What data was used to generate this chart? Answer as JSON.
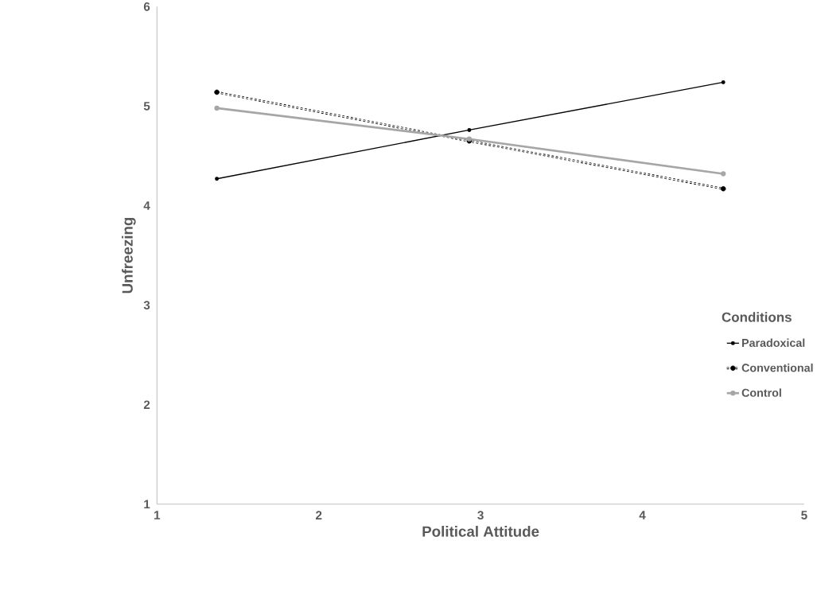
{
  "chart_data": {
    "type": "line",
    "xlabel": "Political Attitude",
    "ylabel": "Unfreezing",
    "legend_title": "Conditions",
    "x": [
      1.37,
      2.93,
      4.5
    ],
    "series": [
      {
        "name": "Paradoxical",
        "color": "#000000",
        "line_style": "solid",
        "values": [
          4.27,
          4.76,
          5.24
        ]
      },
      {
        "name": "Conventional",
        "color": "#000000",
        "line_style": "dashed",
        "values": [
          5.14,
          4.65,
          4.17
        ]
      },
      {
        "name": "Control",
        "color": "#a6a6a6",
        "line_style": "solid",
        "values": [
          4.98,
          4.67,
          4.32
        ]
      }
    ],
    "xlim": [
      1,
      5
    ],
    "ylim": [
      1,
      6
    ],
    "xticks": [
      1,
      2,
      3,
      4,
      5
    ],
    "yticks": [
      1,
      2,
      3,
      4,
      5,
      6
    ],
    "grid": false,
    "legend": "right",
    "marker": "circle"
  }
}
